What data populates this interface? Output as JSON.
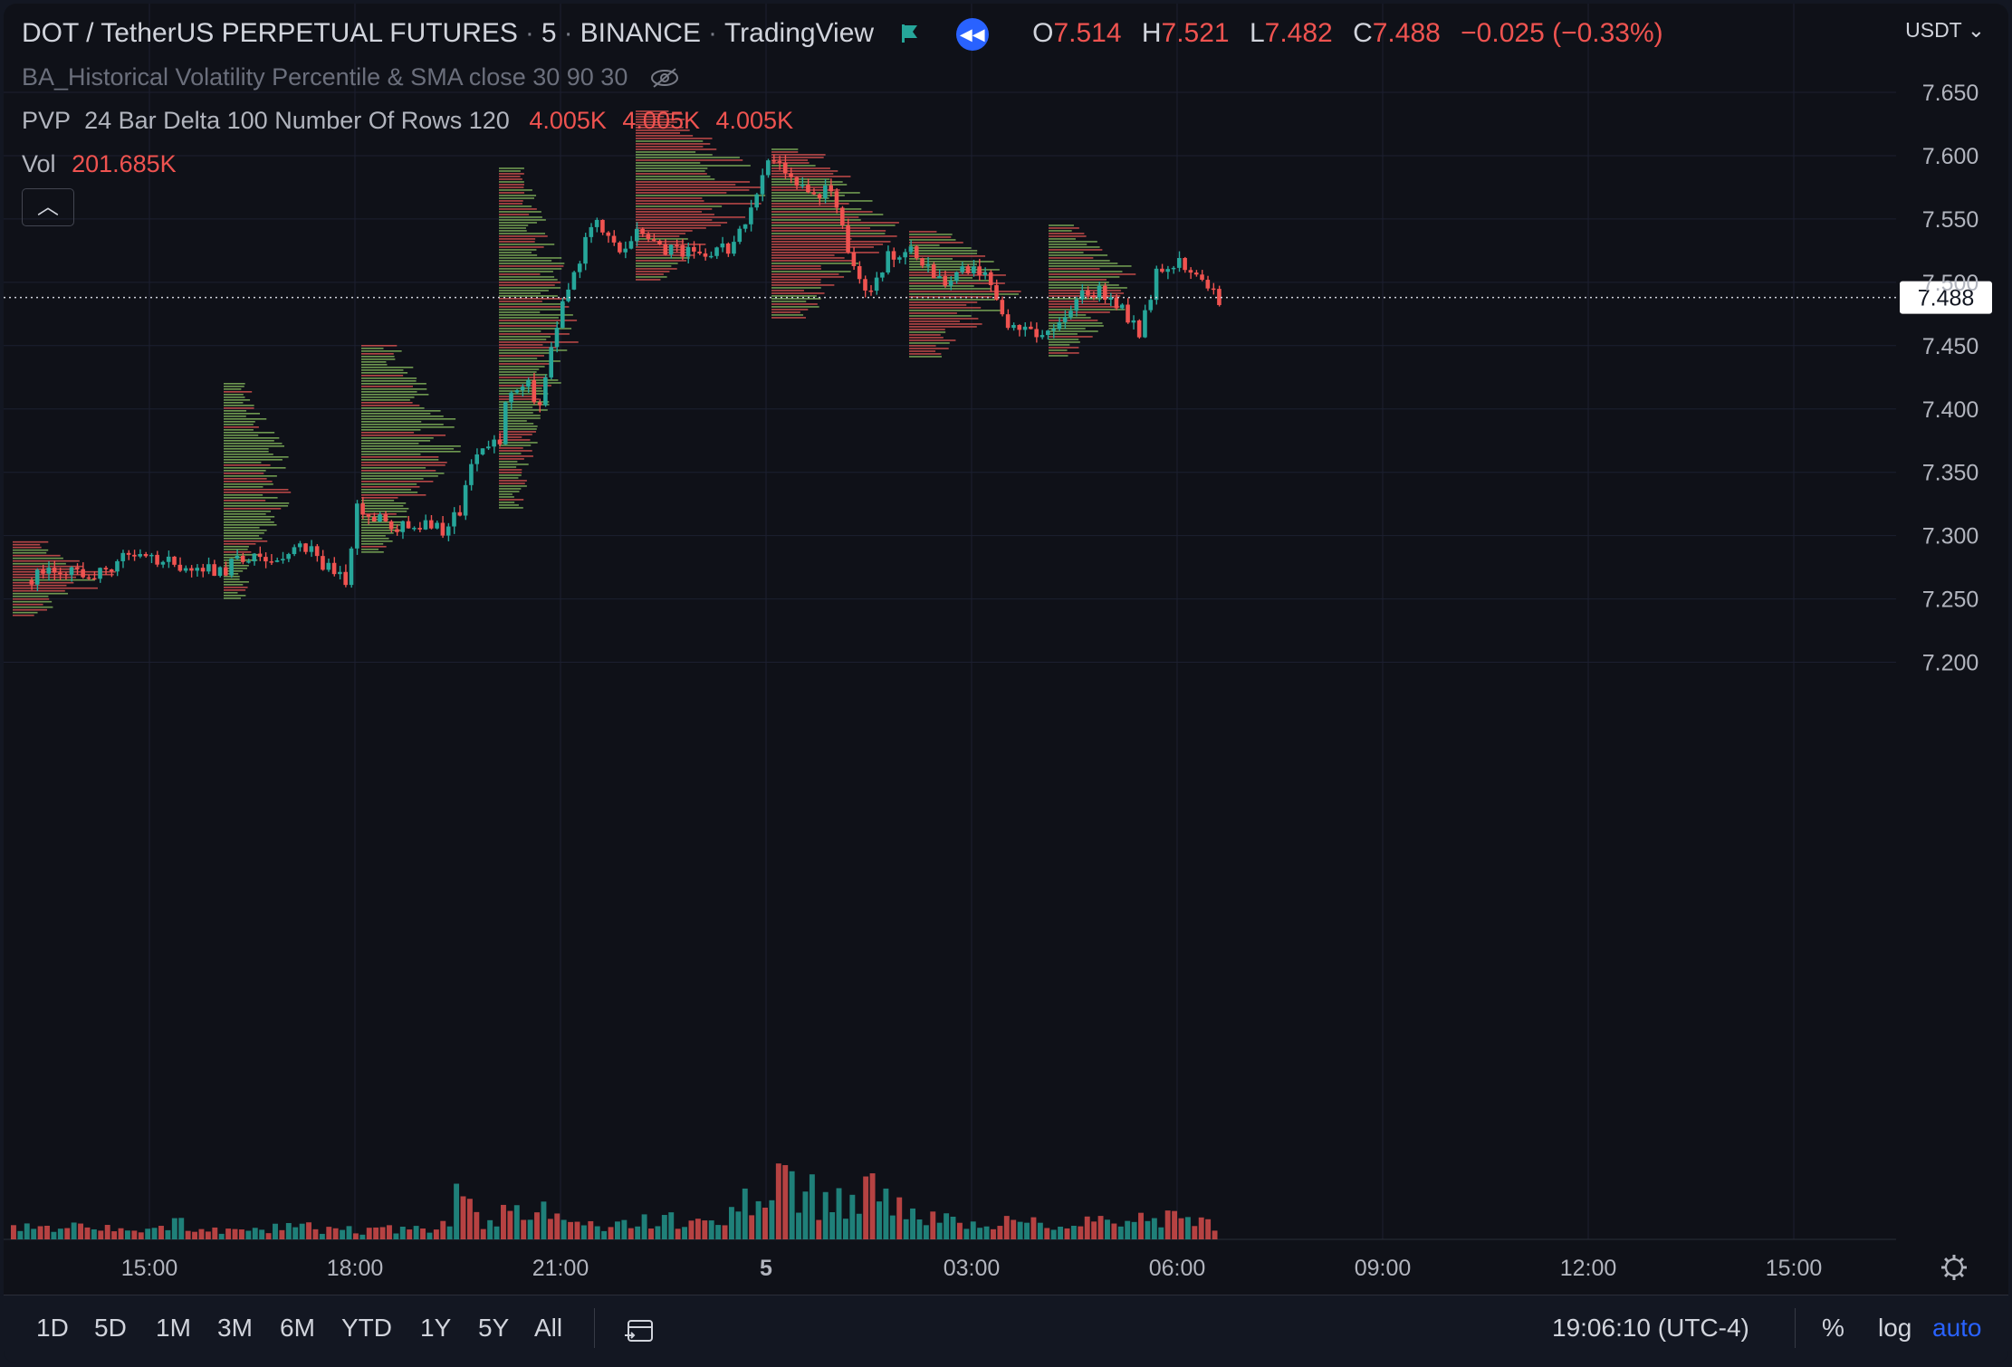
{
  "header": {
    "symbol": "DOT / TetherUS PERPETUAL FUTURES",
    "interval": "5",
    "exchange": "BINANCE",
    "source": "TradingView",
    "ohlc": {
      "o_label": "O",
      "o": "7.514",
      "h_label": "H",
      "h": "7.521",
      "l_label": "L",
      "l": "7.482",
      "c_label": "C",
      "c": "7.488",
      "change": "−0.025 (−0.33%)"
    },
    "currency": "USDT"
  },
  "indicators": {
    "hvp": "BA_Historical Volatility Percentile & SMA close 30 90 30",
    "pvp_name": "PVP",
    "pvp_params": "24 Bar Delta 100 Number Of Rows 120",
    "pvp_values": [
      "4.005K",
      "4.005K",
      "4.005K"
    ],
    "vol_name": "Vol",
    "vol_value": "201.685K"
  },
  "colors": {
    "up": "#26a69a",
    "down": "#ef5350",
    "profile_up": "#7fb05a",
    "profile_down": "#d2504f",
    "accent": "#2962ff",
    "bg": "#0f1118",
    "grid": "#1c2030"
  },
  "bottom_bar": {
    "ranges": [
      "1D",
      "5D",
      "1M",
      "3M",
      "6M",
      "YTD",
      "1Y",
      "5Y",
      "All"
    ],
    "time": "19:06:10 (UTC-4)",
    "percent": "%",
    "log": "log",
    "auto": "auto"
  },
  "chart_data": {
    "type": "candlestick",
    "title": "DOT / TetherUS PERPETUAL FUTURES",
    "ylim": [
      7.19,
      7.665
    ],
    "y_ticks": [
      "7.650",
      "7.600",
      "7.550",
      "7.500",
      "7.450",
      "7.400",
      "7.350",
      "7.300",
      "7.250",
      "7.200"
    ],
    "x_ticks": [
      "15:00",
      "18:00",
      "21:00",
      "5",
      "03:00",
      "06:00",
      "09:00",
      "12:00",
      "15:00"
    ],
    "last_price": "7.488",
    "grid": true,
    "series": [
      {
        "name": "Price",
        "close_path": [
          [
            "13:15",
            7.265
          ],
          [
            "13:45",
            7.275
          ],
          [
            "14:15",
            7.27
          ],
          [
            "14:45",
            7.285
          ],
          [
            "15:15",
            7.28
          ],
          [
            "15:45",
            7.275
          ],
          [
            "16:05",
            7.27
          ],
          [
            "16:30",
            7.285
          ],
          [
            "17:00",
            7.285
          ],
          [
            "17:20",
            7.29
          ],
          [
            "17:40",
            7.275
          ],
          [
            "17:55",
            7.265
          ],
          [
            "18:05",
            7.32
          ],
          [
            "18:20",
            7.315
          ],
          [
            "18:40",
            7.305
          ],
          [
            "19:00",
            7.31
          ],
          [
            "19:20",
            7.305
          ],
          [
            "19:35",
            7.32
          ],
          [
            "19:50",
            7.37
          ],
          [
            "20:10",
            7.375
          ],
          [
            "20:15",
            7.41
          ],
          [
            "20:35",
            7.42
          ],
          [
            "20:45",
            7.4
          ],
          [
            "20:55",
            7.445
          ],
          [
            "21:05",
            7.49
          ],
          [
            "21:20",
            7.52
          ],
          [
            "21:35",
            7.55
          ],
          [
            "21:55",
            7.525
          ],
          [
            "22:15",
            7.54
          ],
          [
            "22:35",
            7.525
          ],
          [
            "22:55",
            7.525
          ],
          [
            "23:15",
            7.52
          ],
          [
            "23:35",
            7.53
          ],
          [
            "23:50",
            7.56
          ],
          [
            "00:05",
            7.6
          ],
          [
            "00:20",
            7.585
          ],
          [
            "00:40",
            7.57
          ],
          [
            "01:00",
            7.575
          ],
          [
            "01:10",
            7.545
          ],
          [
            "01:20",
            7.51
          ],
          [
            "01:35",
            7.49
          ],
          [
            "01:50",
            7.52
          ],
          [
            "02:10",
            7.53
          ],
          [
            "02:35",
            7.5
          ],
          [
            "02:55",
            7.51
          ],
          [
            "03:15",
            7.505
          ],
          [
            "03:30",
            7.47
          ],
          [
            "03:45",
            7.465
          ],
          [
            "04:00",
            7.455
          ],
          [
            "04:20",
            7.47
          ],
          [
            "04:40",
            7.49
          ],
          [
            "04:55",
            7.495
          ],
          [
            "05:15",
            7.48
          ],
          [
            "05:30",
            7.46
          ],
          [
            "05:45",
            7.505
          ],
          [
            "06:00",
            7.515
          ],
          [
            "06:20",
            7.51
          ],
          [
            "06:40",
            7.488
          ]
        ]
      }
    ],
    "volume_values": [
      12,
      9,
      7,
      10,
      9,
      8,
      6,
      7,
      11,
      9,
      8,
      7,
      6,
      9,
      10,
      8,
      7,
      6,
      9,
      8,
      7,
      12,
      30,
      14,
      18,
      22,
      20,
      16,
      11,
      9,
      10,
      14,
      16,
      12,
      13,
      17,
      28,
      40,
      44,
      34,
      26,
      30,
      36,
      27,
      22,
      18,
      16,
      14,
      14,
      13,
      12,
      11,
      10,
      12,
      14,
      16,
      18,
      15,
      14,
      12
    ]
  }
}
